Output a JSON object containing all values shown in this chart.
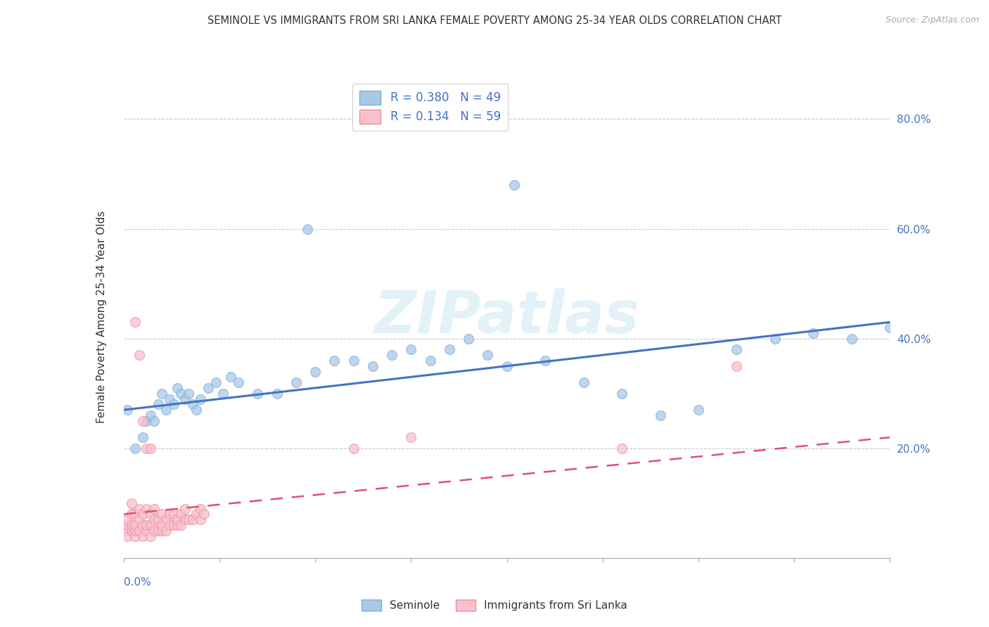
{
  "title": "SEMINOLE VS IMMIGRANTS FROM SRI LANKA FEMALE POVERTY AMONG 25-34 YEAR OLDS CORRELATION CHART",
  "source": "Source: ZipAtlas.com",
  "ylabel": "Female Poverty Among 25-34 Year Olds",
  "xlim": [
    0.0,
    0.2
  ],
  "ylim": [
    0.0,
    0.88
  ],
  "ytick_vals": [
    0.0,
    0.2,
    0.4,
    0.6,
    0.8
  ],
  "ytick_labels": [
    "",
    "20.0%",
    "40.0%",
    "60.0%",
    "80.0%"
  ],
  "blue_scatter_color": "#a8c8e8",
  "blue_scatter_edge": "#7bafd4",
  "pink_scatter_color": "#f9c0cc",
  "pink_scatter_edge": "#e890a0",
  "blue_line_color": "#4472c4",
  "pink_line_color": "#e05070",
  "legend_label1": "R = 0.380   N = 49",
  "legend_label2": "R = 0.134   N = 59",
  "bottom_label1": "Seminole",
  "bottom_label2": "Immigrants from Sri Lanka",
  "watermark": "ZIPatlas",
  "seminole_x": [
    0.001,
    0.003,
    0.005,
    0.006,
    0.007,
    0.008,
    0.009,
    0.01,
    0.011,
    0.012,
    0.013,
    0.014,
    0.015,
    0.016,
    0.017,
    0.018,
    0.019,
    0.02,
    0.022,
    0.024,
    0.026,
    0.028,
    0.03,
    0.035,
    0.04,
    0.045,
    0.05,
    0.055,
    0.06,
    0.065,
    0.07,
    0.075,
    0.08,
    0.085,
    0.09,
    0.095,
    0.1,
    0.11,
    0.12,
    0.13,
    0.14,
    0.15,
    0.16,
    0.17,
    0.18,
    0.19,
    0.2,
    0.048,
    0.102
  ],
  "seminole_y": [
    0.27,
    0.2,
    0.22,
    0.25,
    0.26,
    0.25,
    0.28,
    0.3,
    0.27,
    0.29,
    0.28,
    0.31,
    0.3,
    0.29,
    0.3,
    0.28,
    0.27,
    0.29,
    0.31,
    0.32,
    0.3,
    0.33,
    0.32,
    0.3,
    0.3,
    0.32,
    0.34,
    0.36,
    0.36,
    0.35,
    0.37,
    0.38,
    0.36,
    0.38,
    0.4,
    0.37,
    0.35,
    0.36,
    0.32,
    0.3,
    0.26,
    0.27,
    0.38,
    0.4,
    0.41,
    0.4,
    0.42,
    0.6,
    0.68
  ],
  "srilanka_x": [
    0.0005,
    0.001,
    0.001,
    0.001,
    0.002,
    0.002,
    0.002,
    0.002,
    0.003,
    0.003,
    0.003,
    0.003,
    0.004,
    0.004,
    0.004,
    0.005,
    0.005,
    0.005,
    0.006,
    0.006,
    0.006,
    0.007,
    0.007,
    0.007,
    0.008,
    0.008,
    0.008,
    0.009,
    0.009,
    0.01,
    0.01,
    0.01,
    0.011,
    0.011,
    0.012,
    0.012,
    0.013,
    0.013,
    0.014,
    0.014,
    0.015,
    0.015,
    0.016,
    0.016,
    0.017,
    0.018,
    0.019,
    0.02,
    0.02,
    0.021,
    0.003,
    0.004,
    0.005,
    0.006,
    0.007,
    0.06,
    0.075,
    0.13,
    0.16
  ],
  "srilanka_y": [
    0.05,
    0.04,
    0.06,
    0.07,
    0.05,
    0.06,
    0.08,
    0.1,
    0.04,
    0.05,
    0.06,
    0.08,
    0.05,
    0.07,
    0.09,
    0.04,
    0.06,
    0.08,
    0.05,
    0.06,
    0.09,
    0.04,
    0.06,
    0.08,
    0.05,
    0.07,
    0.09,
    0.05,
    0.07,
    0.05,
    0.06,
    0.08,
    0.05,
    0.07,
    0.06,
    0.08,
    0.06,
    0.08,
    0.06,
    0.07,
    0.06,
    0.08,
    0.07,
    0.09,
    0.07,
    0.07,
    0.08,
    0.07,
    0.09,
    0.08,
    0.43,
    0.37,
    0.25,
    0.2,
    0.2,
    0.2,
    0.22,
    0.2,
    0.35
  ]
}
